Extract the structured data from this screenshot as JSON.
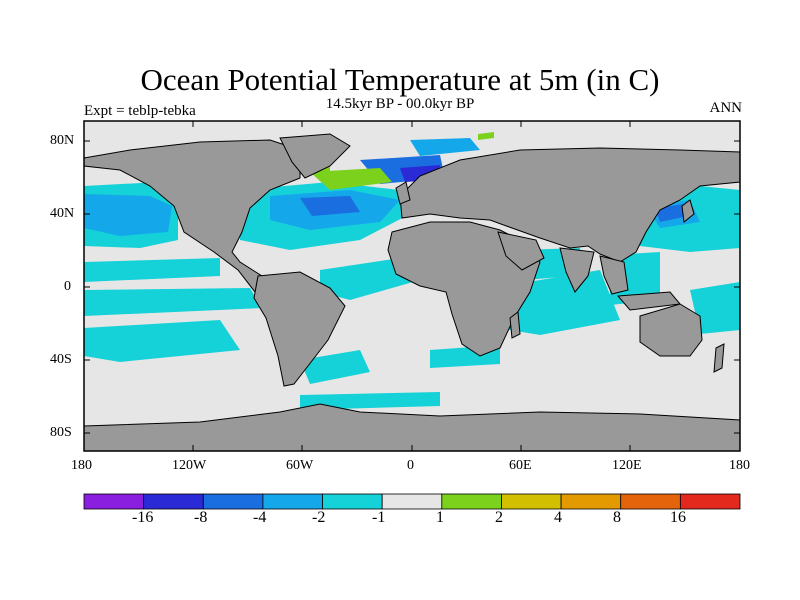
{
  "title": "Ocean Potential Temperature at 5m (in C)",
  "subtitle": "14.5kyr BP - 00.0kyr BP",
  "left_label": "Expt = teblp-tebka",
  "right_label": "ANN",
  "axes": {
    "lat_ticks": [
      "80N",
      "40N",
      "0",
      "40S",
      "80S"
    ],
    "lon_ticks": [
      "180",
      "120W",
      "60W",
      "0",
      "60E",
      "120E",
      "180"
    ]
  },
  "colorbar": {
    "labels": [
      "-16",
      "-8",
      "-4",
      "-2",
      "-1",
      "1",
      "2",
      "4",
      "8",
      "16"
    ],
    "colors": [
      "#8a1fe0",
      "#2a2ad6",
      "#1a6ee0",
      "#14a7ea",
      "#14d2d8",
      "#e6e6e6",
      "#7cd11c",
      "#d2c000",
      "#e39a00",
      "#e3640a",
      "#e3281e"
    ]
  },
  "colors": {
    "land": "#999999",
    "ocean_neutral": "#e6e6e6",
    "cyan": "#14d2d8",
    "lightblue": "#14a7ea",
    "blue": "#1a6ee0",
    "darkblue": "#2a2ad6",
    "green": "#7cd11c",
    "olive": "#d2c000",
    "coast": "#000000"
  }
}
